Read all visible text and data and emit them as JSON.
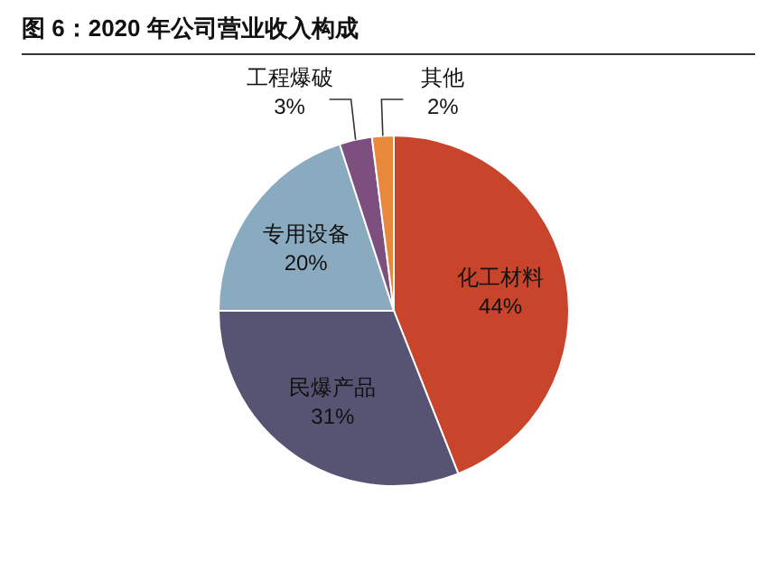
{
  "chart_data": {
    "type": "pie",
    "title": "图 6：2020 年公司营业收入构成",
    "categories": [
      "化工材料",
      "民爆产品",
      "专用设备",
      "工程爆破",
      "其他"
    ],
    "values": [
      44,
      31,
      20,
      3,
      2
    ],
    "colors": [
      "#c8442a",
      "#565373",
      "#8aaabf",
      "#7c4f7e",
      "#e8883a"
    ],
    "value_labels": [
      "44%",
      "31%",
      "20%",
      "3%",
      "2%"
    ]
  }
}
